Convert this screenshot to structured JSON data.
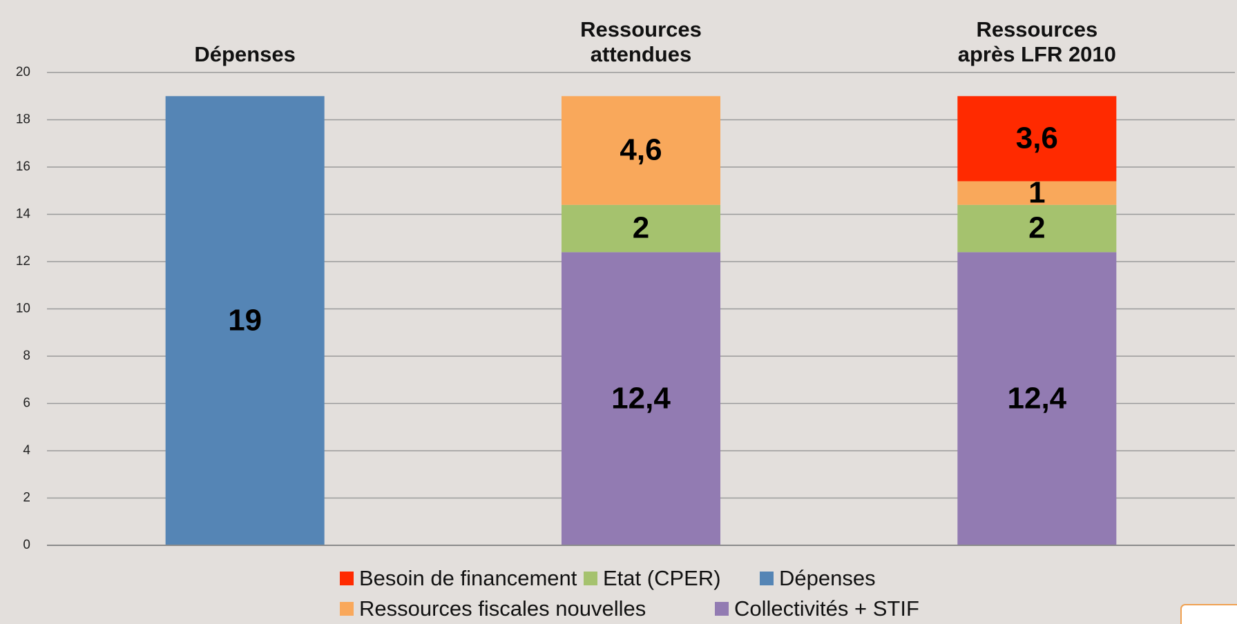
{
  "chart_data": {
    "type": "bar",
    "stacked": true,
    "categories": [
      "Dépenses",
      "Ressources attendues",
      "Ressources après LFR 2010"
    ],
    "series": [
      {
        "name": "Dépenses",
        "color": "#5585b5",
        "values": [
          19,
          null,
          null
        ],
        "value_labels": [
          "19",
          null,
          null
        ]
      },
      {
        "name": "Collectivités + STIF",
        "color": "#927bb2",
        "values": [
          null,
          12.4,
          12.4
        ],
        "value_labels": [
          null,
          "12,4",
          "12,4"
        ]
      },
      {
        "name": "Etat (CPER)",
        "color": "#a5c26e",
        "values": [
          null,
          2,
          2
        ],
        "value_labels": [
          null,
          "2",
          "2"
        ]
      },
      {
        "name": "Ressources fiscales nouvelles",
        "color": "#f9a85b",
        "values": [
          null,
          4.6,
          1
        ],
        "value_labels": [
          null,
          "4,6",
          "1"
        ]
      },
      {
        "name": "Besoin de financement",
        "color": "#ff2a00",
        "values": [
          null,
          null,
          3.6
        ],
        "value_labels": [
          null,
          null,
          "3,6"
        ]
      }
    ],
    "ylim": [
      0,
      20
    ],
    "yticks": [
      0,
      2,
      4,
      6,
      8,
      10,
      12,
      14,
      16,
      18,
      20
    ],
    "grid": true,
    "legend": "bottom"
  }
}
